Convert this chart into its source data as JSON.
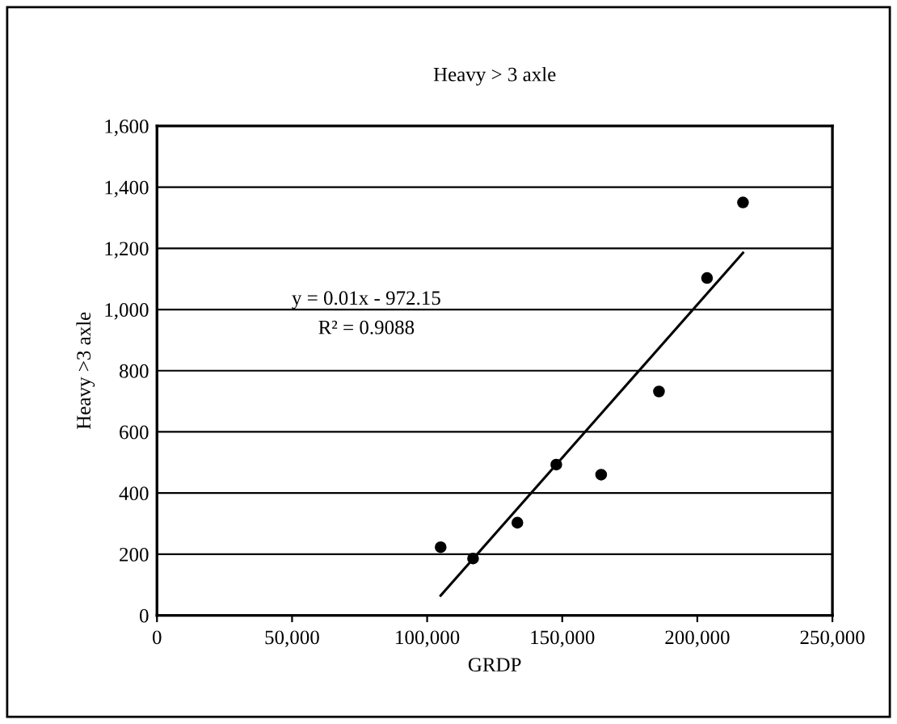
{
  "chart_data": {
    "type": "scatter",
    "title": "Heavy > 3 axle",
    "xlabel": "GRDP",
    "ylabel": "Heavy >3 axle",
    "x": [
      105000,
      117000,
      133400,
      147800,
      164400,
      185800,
      203600,
      216900
    ],
    "series": [
      {
        "color": "#000000",
        "marker": "circle",
        "values": [
          223,
          186,
          303,
          493,
          460,
          732,
          1103,
          1350
        ]
      },
      {
        "type": "line",
        "color": "#000000",
        "x": [
          105000,
          216900
        ],
        "values": [
          65,
          1185
        ]
      }
    ],
    "annotations": [
      "y = 0.01x - 972.15",
      "R² = 0.9088"
    ],
    "xlim": [
      0,
      250000
    ],
    "xticks": [
      {
        "value": 0,
        "label": "0"
      },
      {
        "value": 50000,
        "label": "50,000"
      },
      {
        "value": 100000,
        "label": "100,000"
      },
      {
        "value": 150000,
        "label": "150,000"
      },
      {
        "value": 200000,
        "label": "200,000"
      },
      {
        "value": 250000,
        "label": "250,000"
      }
    ],
    "ylim": [
      0,
      1600
    ],
    "yticks": [
      {
        "value": 0,
        "label": "0"
      },
      {
        "value": 200,
        "label": "200"
      },
      {
        "value": 400,
        "label": "400"
      },
      {
        "value": 600,
        "label": "600"
      },
      {
        "value": 800,
        "label": "800"
      },
      {
        "value": 1000,
        "label": "1,000"
      },
      {
        "value": 1200,
        "label": "1,200"
      },
      {
        "value": 1400,
        "label": "1,400"
      },
      {
        "value": 1600,
        "label": "1,600"
      }
    ],
    "grid": "y",
    "legend": false
  }
}
